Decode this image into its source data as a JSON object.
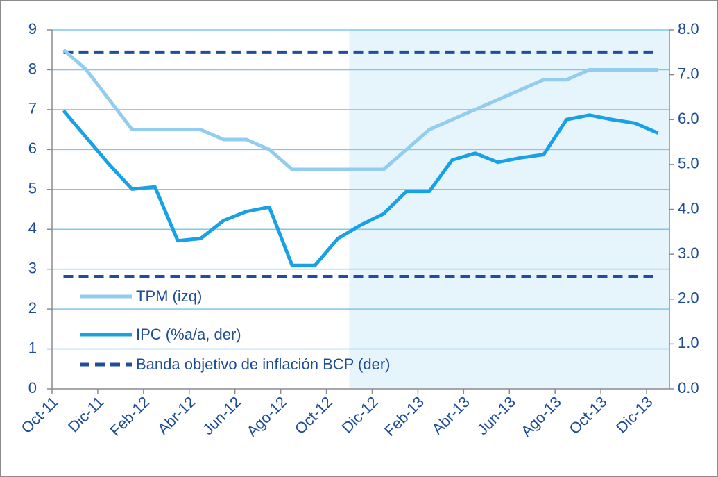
{
  "chart_data": {
    "type": "line",
    "categories": [
      "Oct-11",
      null,
      "Dic-11",
      null,
      "Feb-12",
      null,
      "Abr-12",
      null,
      "Jun-12",
      null,
      "Ago-12",
      null,
      "Oct-12",
      null,
      "Dic-12",
      null,
      "Feb-13",
      null,
      "Abr-13",
      null,
      "Jun-13",
      null,
      "Ago-13",
      null,
      "Oct-13",
      null,
      "Dic-13"
    ],
    "series": [
      {
        "name": "TPM (izq)",
        "color": "#92cdf0",
        "values": [
          8.5,
          8.0,
          7.25,
          6.5,
          6.5,
          6.5,
          6.5,
          6.25,
          6.25,
          6.0,
          5.5,
          5.5,
          5.5,
          5.5,
          5.5,
          6.0,
          6.5,
          6.75,
          7.0,
          7.25,
          7.5,
          7.75,
          7.75,
          8.0,
          8.0,
          8.0,
          8.0
        ]
      },
      {
        "name": "IPC (%a/a,  der)",
        "color": "#19a1e6",
        "axis": "y2",
        "values": [
          6.2,
          5.6,
          5.0,
          4.45,
          4.5,
          3.3,
          3.35,
          3.75,
          3.95,
          4.05,
          2.75,
          2.75,
          3.35,
          3.65,
          3.9,
          4.4,
          4.4,
          5.1,
          5.25,
          5.05,
          5.15,
          5.22,
          6.0,
          6.1,
          6.0,
          5.92,
          5.7
        ]
      }
    ],
    "band": {
      "name": "Banda objetivo de inflación BCP (der)",
      "color": "#1f4f9c",
      "axis": "y2",
      "values": [
        2.5,
        7.5
      ]
    },
    "ylim": [
      0,
      9
    ],
    "yticks": [
      0,
      1,
      2,
      3,
      4,
      5,
      6,
      7,
      8,
      9
    ],
    "y2lim": [
      0,
      8
    ],
    "y2ticks": [
      {
        "value": 0,
        "label": "0.0"
      },
      {
        "value": 1,
        "label": "1.0"
      },
      {
        "value": 2,
        "label": "2.0"
      },
      {
        "value": 3,
        "label": "3.0"
      },
      {
        "value": 4,
        "label": "4.0"
      },
      {
        "value": 5,
        "label": "5.0"
      },
      {
        "value": 6,
        "label": "6.0"
      },
      {
        "value": 7,
        "label": "7.0"
      },
      {
        "value": 8,
        "label": "8.0"
      }
    ],
    "grid": true
  }
}
